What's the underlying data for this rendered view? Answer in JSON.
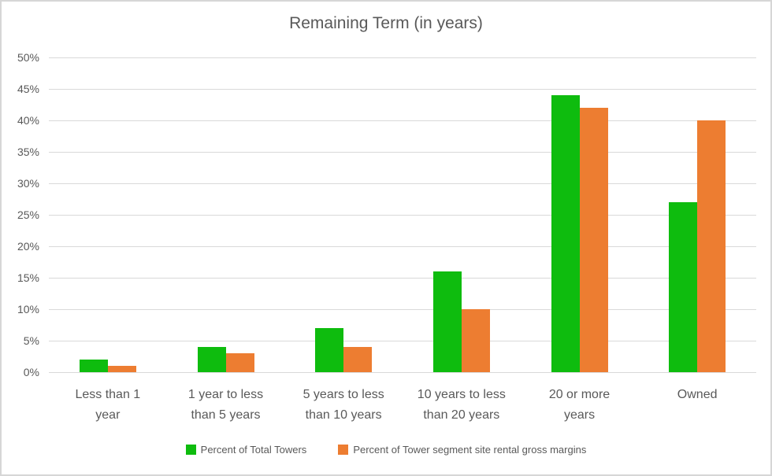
{
  "chart_data": {
    "type": "bar",
    "title": "Remaining Term (in years)",
    "categories": [
      "Less than 1 year",
      "1 year to less than 5 years",
      "5 years to less than 10 years",
      "10 years to less than 20 years",
      "20 or more years",
      "Owned"
    ],
    "category_label_lines": [
      [
        "Less than 1",
        "year"
      ],
      [
        "1 year to less",
        "than 5 years"
      ],
      [
        "5 years to less",
        "than 10 years"
      ],
      [
        "10 years to less",
        "than 20 years"
      ],
      [
        "20 or more",
        "years"
      ],
      [
        "Owned"
      ]
    ],
    "series": [
      {
        "name": "Percent of Total Towers",
        "values": [
          2,
          4,
          7,
          16,
          44,
          27
        ],
        "color": "#0ebc0e"
      },
      {
        "name": "Percent of Tower segment site rental gross margins",
        "values": [
          1,
          3,
          4,
          10,
          42,
          40
        ],
        "color": "#ed7d31"
      }
    ],
    "y_ticks": [
      "0%",
      "5%",
      "10%",
      "15%",
      "20%",
      "25%",
      "30%",
      "35%",
      "40%",
      "45%",
      "50%"
    ],
    "y_tick_values": [
      0,
      5,
      10,
      15,
      20,
      25,
      30,
      35,
      40,
      45,
      50
    ],
    "ylim": [
      0,
      50
    ],
    "xlabel": "",
    "ylabel": "",
    "grid": true,
    "legend_position": "bottom",
    "grid_color": "#d9d9d9",
    "text_color": "#595959",
    "background_color": "#ffffff",
    "border_color": "#d6d6d6"
  }
}
